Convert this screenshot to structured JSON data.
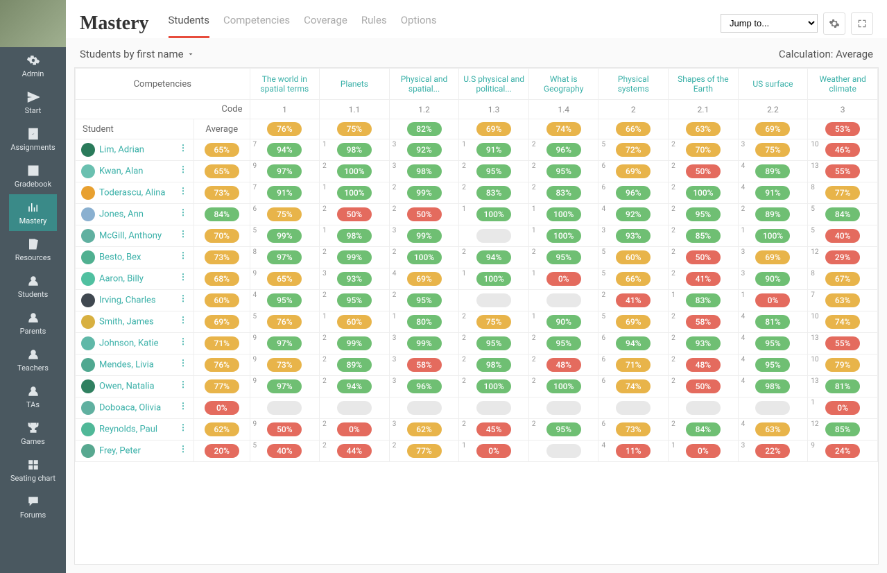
{
  "title": "Mastery",
  "tabs": [
    "Students",
    "Competencies",
    "Coverage",
    "Rules",
    "Options"
  ],
  "activeTab": 0,
  "jumpTo": "Jump to...",
  "subLeft": "Students by first name",
  "subRight": "Calculation: Average",
  "sidebar": [
    {
      "label": "Admin",
      "icon": "gear"
    },
    {
      "label": "Start",
      "icon": "send"
    },
    {
      "label": "Assignments",
      "icon": "check"
    },
    {
      "label": "Gradebook",
      "icon": "grid"
    },
    {
      "label": "Mastery",
      "icon": "bars",
      "active": true
    },
    {
      "label": "Resources",
      "icon": "books"
    },
    {
      "label": "Students",
      "icon": "person"
    },
    {
      "label": "Parents",
      "icon": "person"
    },
    {
      "label": "Teachers",
      "icon": "person"
    },
    {
      "label": "TAs",
      "icon": "person"
    },
    {
      "label": "Games",
      "icon": "trophy"
    },
    {
      "label": "Seating chart",
      "icon": "seats"
    },
    {
      "label": "Forums",
      "icon": "forum"
    }
  ],
  "headerLabels": {
    "competencies": "Competencies",
    "code": "Code",
    "student": "Student",
    "average": "Average"
  },
  "competencies": [
    {
      "name": "The world in spatial terms",
      "code": "1"
    },
    {
      "name": "Planets",
      "code": "1.1"
    },
    {
      "name": "Physical and spatial...",
      "code": "1.2"
    },
    {
      "name": "U.S physical and political...",
      "code": "1.3"
    },
    {
      "name": "What is Geography",
      "code": "1.4"
    },
    {
      "name": "Physical systems",
      "code": "2"
    },
    {
      "name": "Shapes of the Earth",
      "code": "2.1"
    },
    {
      "name": "US surface",
      "code": "2.2"
    },
    {
      "name": "Weather and climate",
      "code": "3"
    }
  ],
  "classAverages": [
    76,
    75,
    82,
    69,
    74,
    66,
    63,
    69,
    53
  ],
  "colors": {
    "green": "#6fbf73",
    "orange": "#e8b44a",
    "red": "#e46b5e",
    "gray": "#e8e8e8",
    "teal": "#3ab0a8"
  },
  "students": [
    {
      "name": "Lim, Adrian",
      "avatar": "#2a7a5a",
      "avg": 65,
      "scores": [
        {
          "n": 7,
          "v": 94
        },
        {
          "n": 1,
          "v": 98
        },
        {
          "n": 3,
          "v": 92
        },
        {
          "n": 1,
          "v": 91
        },
        {
          "n": 2,
          "v": 96
        },
        {
          "n": 5,
          "v": 72
        },
        {
          "n": 2,
          "v": 70
        },
        {
          "n": 3,
          "v": 75
        },
        {
          "n": 10,
          "v": 46
        }
      ]
    },
    {
      "name": "Kwan, Alan",
      "avatar": "#6ac0b0",
      "avg": 65,
      "scores": [
        {
          "n": 9,
          "v": 97
        },
        {
          "n": 2,
          "v": 100
        },
        {
          "n": 3,
          "v": 98
        },
        {
          "n": 2,
          "v": 95
        },
        {
          "n": 2,
          "v": 95
        },
        {
          "n": 6,
          "v": 69
        },
        {
          "n": 2,
          "v": 50
        },
        {
          "n": 4,
          "v": 89
        },
        {
          "n": 13,
          "v": 55
        }
      ]
    },
    {
      "name": "Toderascu, Alina",
      "avatar": "#e8a030",
      "avg": 73,
      "scores": [
        {
          "n": 7,
          "v": 91
        },
        {
          "n": 1,
          "v": 100
        },
        {
          "n": 2,
          "v": 99
        },
        {
          "n": 2,
          "v": 83
        },
        {
          "n": 2,
          "v": 83
        },
        {
          "n": 6,
          "v": 96
        },
        {
          "n": 2,
          "v": 100
        },
        {
          "n": 4,
          "v": 91
        },
        {
          "n": 8,
          "v": 77
        }
      ]
    },
    {
      "name": "Jones, Ann",
      "avatar": "#8ab0d0",
      "avg": 84,
      "scores": [
        {
          "n": 6,
          "v": 75
        },
        {
          "n": 2,
          "v": 50
        },
        {
          "n": 2,
          "v": 50
        },
        {
          "n": 1,
          "v": 100
        },
        {
          "n": 1,
          "v": 100
        },
        {
          "n": 4,
          "v": 92
        },
        {
          "n": 2,
          "v": 95
        },
        {
          "n": 2,
          "v": 89
        },
        {
          "n": 5,
          "v": 84
        }
      ]
    },
    {
      "name": "McGill, Anthony",
      "avatar": "#60b0a0",
      "avg": 70,
      "scores": [
        {
          "n": 5,
          "v": 99
        },
        {
          "n": 1,
          "v": 98
        },
        {
          "n": 3,
          "v": 99
        },
        {
          "n": null,
          "v": null
        },
        {
          "n": 1,
          "v": 100
        },
        {
          "n": 3,
          "v": 93
        },
        {
          "n": 2,
          "v": 85
        },
        {
          "n": 1,
          "v": 100
        },
        {
          "n": 5,
          "v": 40
        }
      ]
    },
    {
      "name": "Besto, Bex",
      "avatar": "#50b090",
      "avg": 73,
      "scores": [
        {
          "n": 8,
          "v": 97
        },
        {
          "n": 2,
          "v": 99
        },
        {
          "n": 2,
          "v": 100
        },
        {
          "n": 2,
          "v": 94
        },
        {
          "n": 2,
          "v": 95
        },
        {
          "n": 5,
          "v": 60
        },
        {
          "n": 2,
          "v": 50
        },
        {
          "n": 3,
          "v": 69
        },
        {
          "n": 12,
          "v": 29
        }
      ]
    },
    {
      "name": "Aaron, Billy",
      "avatar": "#50c0a0",
      "avg": 68,
      "scores": [
        {
          "n": 9,
          "v": 65
        },
        {
          "n": 3,
          "v": 93
        },
        {
          "n": 4,
          "v": 69
        },
        {
          "n": 1,
          "v": 100
        },
        {
          "n": 1,
          "v": 0
        },
        {
          "n": 5,
          "v": 66
        },
        {
          "n": 2,
          "v": 41
        },
        {
          "n": 3,
          "v": 90
        },
        {
          "n": 8,
          "v": 67
        }
      ]
    },
    {
      "name": "Irving, Charles",
      "avatar": "#404850",
      "avg": 60,
      "scores": [
        {
          "n": 4,
          "v": 95
        },
        {
          "n": 2,
          "v": 95
        },
        {
          "n": 2,
          "v": 95
        },
        {
          "n": null,
          "v": null
        },
        {
          "n": null,
          "v": null
        },
        {
          "n": 2,
          "v": 41
        },
        {
          "n": 1,
          "v": 83
        },
        {
          "n": 1,
          "v": 0
        },
        {
          "n": 7,
          "v": 63
        }
      ]
    },
    {
      "name": "Smith, James",
      "avatar": "#d8b040",
      "avg": 69,
      "scores": [
        {
          "n": 5,
          "v": 76
        },
        {
          "n": 1,
          "v": 60
        },
        {
          "n": 1,
          "v": 80
        },
        {
          "n": 2,
          "v": 75
        },
        {
          "n": 1,
          "v": 90
        },
        {
          "n": 5,
          "v": 69
        },
        {
          "n": 2,
          "v": 58
        },
        {
          "n": 4,
          "v": 81
        },
        {
          "n": 10,
          "v": 74
        }
      ]
    },
    {
      "name": "Johnson, Katie",
      "avatar": "#60b8a8",
      "avg": 71,
      "scores": [
        {
          "n": 9,
          "v": 97
        },
        {
          "n": 2,
          "v": 99
        },
        {
          "n": 3,
          "v": 99
        },
        {
          "n": 2,
          "v": 95
        },
        {
          "n": 2,
          "v": 95
        },
        {
          "n": 6,
          "v": 94
        },
        {
          "n": 2,
          "v": 93
        },
        {
          "n": 4,
          "v": 95
        },
        {
          "n": 13,
          "v": 55
        }
      ]
    },
    {
      "name": "Mendes, Livia",
      "avatar": "#50a890",
      "avg": 76,
      "scores": [
        {
          "n": 9,
          "v": 73
        },
        {
          "n": 2,
          "v": 89
        },
        {
          "n": 3,
          "v": 58
        },
        {
          "n": 2,
          "v": 98
        },
        {
          "n": 2,
          "v": 48
        },
        {
          "n": 6,
          "v": 71
        },
        {
          "n": 2,
          "v": 48
        },
        {
          "n": 4,
          "v": 95
        },
        {
          "n": 10,
          "v": 79
        }
      ]
    },
    {
      "name": "Owen, Natalia",
      "avatar": "#308060",
      "avg": 77,
      "scores": [
        {
          "n": 9,
          "v": 97
        },
        {
          "n": 2,
          "v": 94
        },
        {
          "n": 3,
          "v": 96
        },
        {
          "n": 2,
          "v": 100
        },
        {
          "n": 2,
          "v": 100
        },
        {
          "n": 6,
          "v": 74
        },
        {
          "n": 2,
          "v": 50
        },
        {
          "n": 4,
          "v": 98
        },
        {
          "n": 13,
          "v": 81
        }
      ]
    },
    {
      "name": "Doboaca, Olivia",
      "avatar": "#60b0a0",
      "avg": 0,
      "scores": [
        {
          "n": null,
          "v": null
        },
        {
          "n": null,
          "v": null
        },
        {
          "n": null,
          "v": null
        },
        {
          "n": null,
          "v": null
        },
        {
          "n": null,
          "v": null
        },
        {
          "n": null,
          "v": null
        },
        {
          "n": null,
          "v": null
        },
        {
          "n": null,
          "v": null
        },
        {
          "n": 1,
          "v": 0
        }
      ]
    },
    {
      "name": "Reynolds, Paul",
      "avatar": "#50b898",
      "avg": 62,
      "scores": [
        {
          "n": 9,
          "v": 50
        },
        {
          "n": 2,
          "v": 0
        },
        {
          "n": 3,
          "v": 62
        },
        {
          "n": 2,
          "v": 45
        },
        {
          "n": 2,
          "v": 95
        },
        {
          "n": 6,
          "v": 73
        },
        {
          "n": 2,
          "v": 84
        },
        {
          "n": 4,
          "v": 63
        },
        {
          "n": 12,
          "v": 85
        }
      ]
    },
    {
      "name": "Frey, Peter",
      "avatar": "#58a890",
      "avg": 20,
      "scores": [
        {
          "n": 5,
          "v": 40
        },
        {
          "n": 2,
          "v": 44
        },
        {
          "n": 2,
          "v": 77
        },
        {
          "n": 1,
          "v": 0
        },
        {
          "n": null,
          "v": null
        },
        {
          "n": 4,
          "v": 11
        },
        {
          "n": 1,
          "v": 0
        },
        {
          "n": 3,
          "v": 22
        },
        {
          "n": 9,
          "v": 24
        }
      ]
    }
  ],
  "thresholds": {
    "green": 80,
    "orange": 60
  }
}
